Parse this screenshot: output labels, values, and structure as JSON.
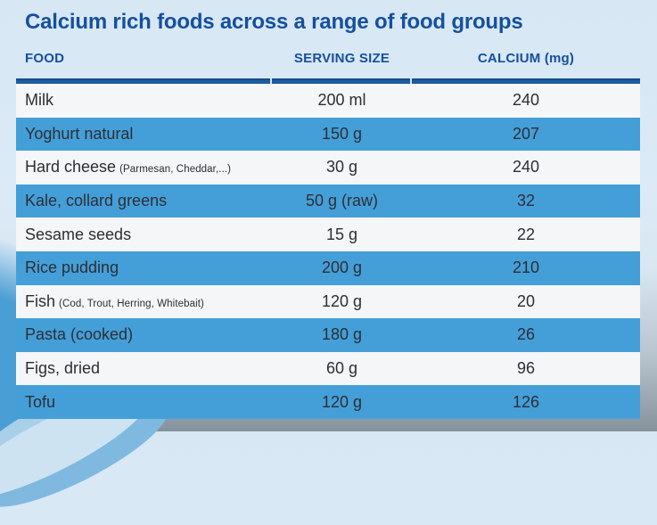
{
  "title": "Calcium rich foods across a range of food groups",
  "colors": {
    "title_navy": "#15509e",
    "header_navy": "#15509e",
    "row_blue": "#449fd8",
    "row_white": "#f4f6f7",
    "top_border_navy": "#1d5ca0",
    "background_light_blue": "#d7e7f4",
    "background_bottom_gray": "#85929c",
    "corner_blue": "#4a9ed6",
    "cell_text": "#2d2e35"
  },
  "table": {
    "headers": {
      "food": "FOOD",
      "serving": "SERVING SIZE",
      "calcium": "CALCIUM (mg)"
    },
    "rows": [
      {
        "food": "Milk",
        "note": "",
        "serving": "200 ml",
        "calcium": "240"
      },
      {
        "food": "Yoghurt natural",
        "note": "",
        "serving": "150 g",
        "calcium": "207"
      },
      {
        "food": "Hard cheese",
        "note": "(Parmesan, Cheddar,...)",
        "serving": "30 g",
        "calcium": "240"
      },
      {
        "food": "Kale, collard greens",
        "note": "",
        "serving": "50 g (raw)",
        "calcium": "32"
      },
      {
        "food": "Sesame seeds",
        "note": "",
        "serving": "15 g",
        "calcium": "22"
      },
      {
        "food": "Rice pudding",
        "note": "",
        "serving": "200 g",
        "calcium": "210"
      },
      {
        "food": "Fish",
        "note": "(Cod, Trout, Herring, Whitebait)",
        "serving": "120 g",
        "calcium": "20"
      },
      {
        "food": "Pasta (cooked)",
        "note": "",
        "serving": "180 g",
        "calcium": "26"
      },
      {
        "food": "Figs, dried",
        "note": "",
        "serving": "60 g",
        "calcium": "96"
      },
      {
        "food": "Tofu",
        "note": "",
        "serving": "120 g",
        "calcium": "126"
      }
    ]
  },
  "chart_data": {
    "type": "table",
    "title": "Calcium rich foods across a range of food groups",
    "columns": [
      "FOOD",
      "SERVING SIZE",
      "CALCIUM (mg)"
    ],
    "rows": [
      [
        "Milk",
        "200 ml",
        240
      ],
      [
        "Yoghurt natural",
        "150 g",
        207
      ],
      [
        "Hard cheese (Parmesan, Cheddar,...)",
        "30 g",
        240
      ],
      [
        "Kale, collard greens",
        "50 g (raw)",
        32
      ],
      [
        "Sesame seeds",
        "15 g",
        22
      ],
      [
        "Rice pudding",
        "200 g",
        210
      ],
      [
        "Fish (Cod, Trout, Herring, Whitebait)",
        "120 g",
        20
      ],
      [
        "Pasta (cooked)",
        "180 g",
        26
      ],
      [
        "Figs, dried",
        "60 g",
        96
      ],
      [
        "Tofu",
        "120 g",
        126
      ]
    ],
    "layout_hints": {
      "striped_rows": true,
      "stripe_color": "#449fd8",
      "column_alignment": [
        "left",
        "center",
        "center"
      ]
    }
  }
}
